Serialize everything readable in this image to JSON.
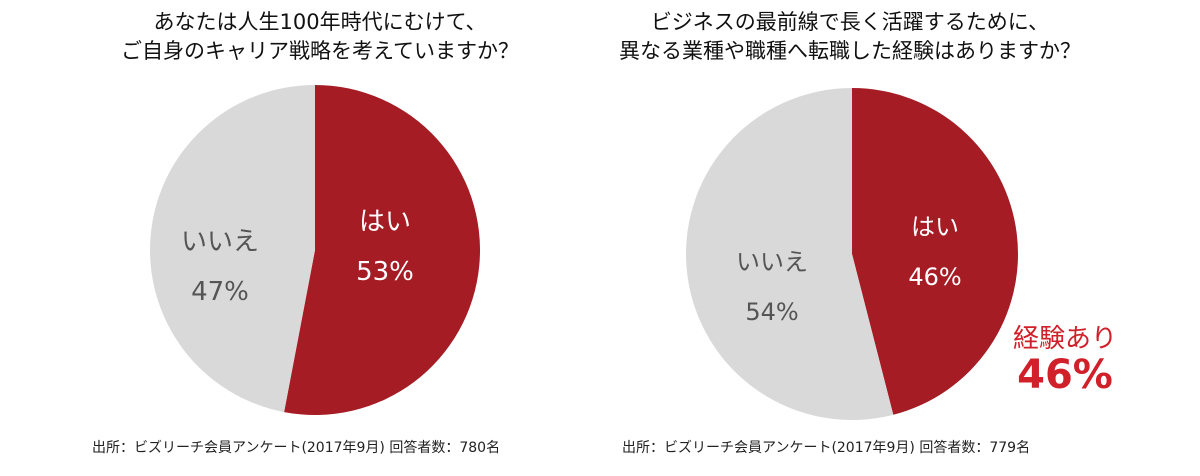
{
  "chart_data": [
    {
      "type": "pie",
      "title": [
        "あなたは人生100年時代にむけて、",
        "ご自身のキャリア戦略を考えていますか？"
      ],
      "slices": [
        {
          "label": "はい",
          "value": 53,
          "value_label": "53%",
          "color": "#a51c24"
        },
        {
          "label": "いいえ",
          "value": 47,
          "value_label": "47%",
          "color": "#d9d9d9"
        }
      ],
      "source": "出所：ビズリーチ会員アンケート(2017年9月) 回答者数：780名"
    },
    {
      "type": "pie",
      "title": [
        "ビジネスの最前線で長く活躍するために、",
        "異なる業種や職種へ転職した経験はありますか？"
      ],
      "slices": [
        {
          "label": "はい",
          "value": 46,
          "value_label": "46%",
          "color": "#a51c24"
        },
        {
          "label": "いいえ",
          "value": 54,
          "value_label": "54%",
          "color": "#d9d9d9"
        }
      ],
      "annotation": {
        "label": "経験あり",
        "value": "46%",
        "color": "#d0202a"
      },
      "source": "出所：ビズリーチ会員アンケート(2017年9月) 回答者数：779名"
    }
  ]
}
